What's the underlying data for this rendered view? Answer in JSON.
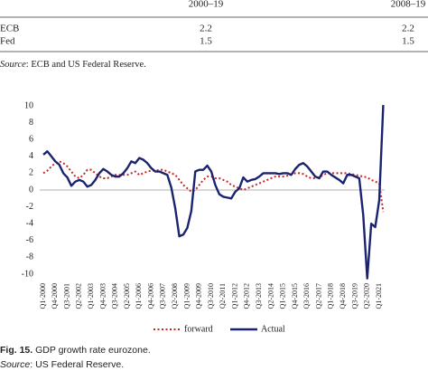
{
  "table": {
    "columns": [
      "2000–19",
      "2008–19"
    ],
    "rows": [
      [
        "ECB",
        "2.2",
        "2.2"
      ],
      [
        "Fed",
        "1.5",
        "1.5"
      ]
    ]
  },
  "table_source": {
    "label": "Source",
    "text": ": ECB and US Federal Reserve."
  },
  "chart_data": {
    "type": "line",
    "categories": [
      "Q1-2000",
      null,
      null,
      "Q4-2000",
      null,
      null,
      "Q3-2001",
      null,
      null,
      "Q2-2002",
      null,
      null,
      "Q1-2003",
      null,
      null,
      "Q4-2003",
      null,
      null,
      "Q3-2004",
      null,
      null,
      "Q2-2005",
      null,
      null,
      "Q1-2006",
      null,
      null,
      "Q4-2006",
      null,
      null,
      "Q3-2007",
      null,
      null,
      "Q2-2008",
      null,
      null,
      "Q1-2009",
      null,
      null,
      "Q4-2009",
      null,
      null,
      "Q3-2010",
      null,
      null,
      "Q2-2011",
      null,
      null,
      "Q1-2012",
      null,
      null,
      "Q4-2012",
      null,
      null,
      "Q3-2013",
      null,
      null,
      "Q2-2014",
      null,
      null,
      "Q1-2015",
      null,
      null,
      "Q4-2015",
      null,
      null,
      "Q3-2016",
      null,
      null,
      "Q2-2017",
      null,
      null,
      "Q1-2018",
      null,
      null,
      "Q4-2018",
      null,
      null,
      "Q3-2019",
      null,
      null,
      "Q2-2020",
      null,
      null,
      "Q1-2021",
      null
    ],
    "series": [
      {
        "name": "forward",
        "color": "#c62828",
        "dash": true,
        "values": [
          2.0,
          2.3,
          2.8,
          3.2,
          3.4,
          3.2,
          2.8,
          2.2,
          1.6,
          1.4,
          1.8,
          2.4,
          2.4,
          2.0,
          1.6,
          1.4,
          1.4,
          1.6,
          1.8,
          1.8,
          1.8,
          1.8,
          2.0,
          2.2,
          1.8,
          2.0,
          2.2,
          2.3,
          2.3,
          2.4,
          2.4,
          2.2,
          2.0,
          1.8,
          1.2,
          0.6,
          0.2,
          -0.2,
          0.0,
          0.6,
          1.2,
          1.6,
          1.6,
          1.4,
          1.4,
          1.2,
          1.0,
          0.6,
          0.4,
          0.2,
          0.0,
          0.2,
          0.4,
          0.6,
          0.8,
          1.0,
          1.2,
          1.4,
          1.6,
          1.6,
          1.6,
          1.7,
          1.8,
          2.0,
          2.0,
          1.9,
          1.6,
          1.4,
          1.4,
          1.5,
          1.8,
          2.0,
          2.0,
          2.0,
          2.0,
          2.0,
          2.0,
          1.9,
          1.8,
          1.7,
          1.6,
          1.5,
          1.2,
          1.0,
          0.8,
          -2.6
        ]
      },
      {
        "name": "Actual",
        "color": "#1a2370",
        "dash": false,
        "values": [
          4.2,
          4.6,
          4.0,
          3.4,
          3.0,
          2.0,
          1.5,
          0.5,
          1.0,
          1.2,
          1.0,
          0.4,
          0.6,
          1.2,
          2.0,
          2.5,
          2.2,
          1.8,
          1.6,
          1.6,
          2.0,
          2.6,
          3.4,
          3.2,
          3.8,
          3.6,
          3.2,
          2.6,
          2.2,
          2.2,
          2.0,
          1.8,
          0.3,
          -2.2,
          -5.5,
          -5.3,
          -4.5,
          -2.5,
          2.2,
          2.4,
          2.4,
          2.9,
          2.2,
          0.6,
          -0.5,
          -0.8,
          -0.9,
          -1.0,
          -0.2,
          0.2,
          1.5,
          1.0,
          1.2,
          1.3,
          1.6,
          2.0,
          2.0,
          2.0,
          2.0,
          1.9,
          2.0,
          2.0,
          1.8,
          2.5,
          3.0,
          3.2,
          2.8,
          2.2,
          1.6,
          1.4,
          2.2,
          2.2,
          1.8,
          1.5,
          1.2,
          0.8,
          1.8,
          1.8,
          1.6,
          1.4,
          -3.0,
          -10.5,
          -4.0,
          -4.4,
          -1.2,
          10.1
        ]
      }
    ],
    "ylim": [
      -11,
      11
    ],
    "yticks": [
      -10,
      -8,
      -6,
      -4,
      -2,
      0,
      2,
      4,
      6,
      8,
      10
    ],
    "grid": false,
    "legend": "bottom"
  },
  "caption": {
    "label": "Fig. 15.",
    "text": " GDP growth rate eurozone."
  },
  "caption_source": {
    "label": "Source",
    "text": ": US Federal Reserve."
  }
}
